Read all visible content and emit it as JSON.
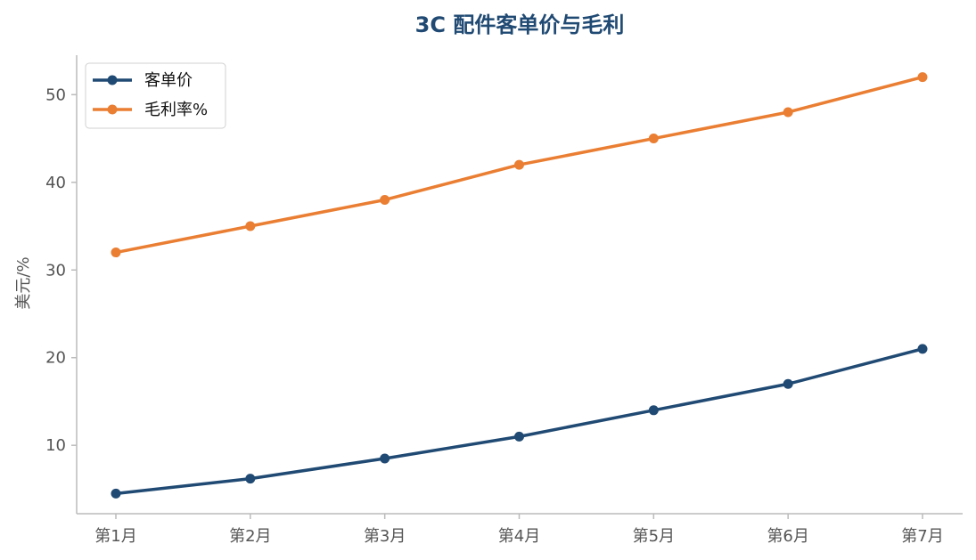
{
  "chart_data": {
    "type": "line",
    "title": "3C 配件客单价与毛利",
    "xlabel": "",
    "ylabel": "美元/%",
    "categories": [
      "第1月",
      "第2月",
      "第3月",
      "第4月",
      "第5月",
      "第6月",
      "第7月"
    ],
    "series": [
      {
        "name": "客单价",
        "color": "#204a73",
        "values": [
          4.5,
          6.2,
          8.5,
          11,
          14,
          17,
          21
        ]
      },
      {
        "name": "毛利率%",
        "color": "#ea7e32",
        "values": [
          32,
          35,
          38,
          42,
          45,
          48,
          52
        ]
      }
    ],
    "yticks": [
      10,
      20,
      30,
      40,
      50
    ],
    "ylim": [
      2.2,
      54.5
    ],
    "grid": false,
    "legend": "top-left",
    "title_color": "#204a73",
    "axis_color": "#bbbbbb"
  }
}
